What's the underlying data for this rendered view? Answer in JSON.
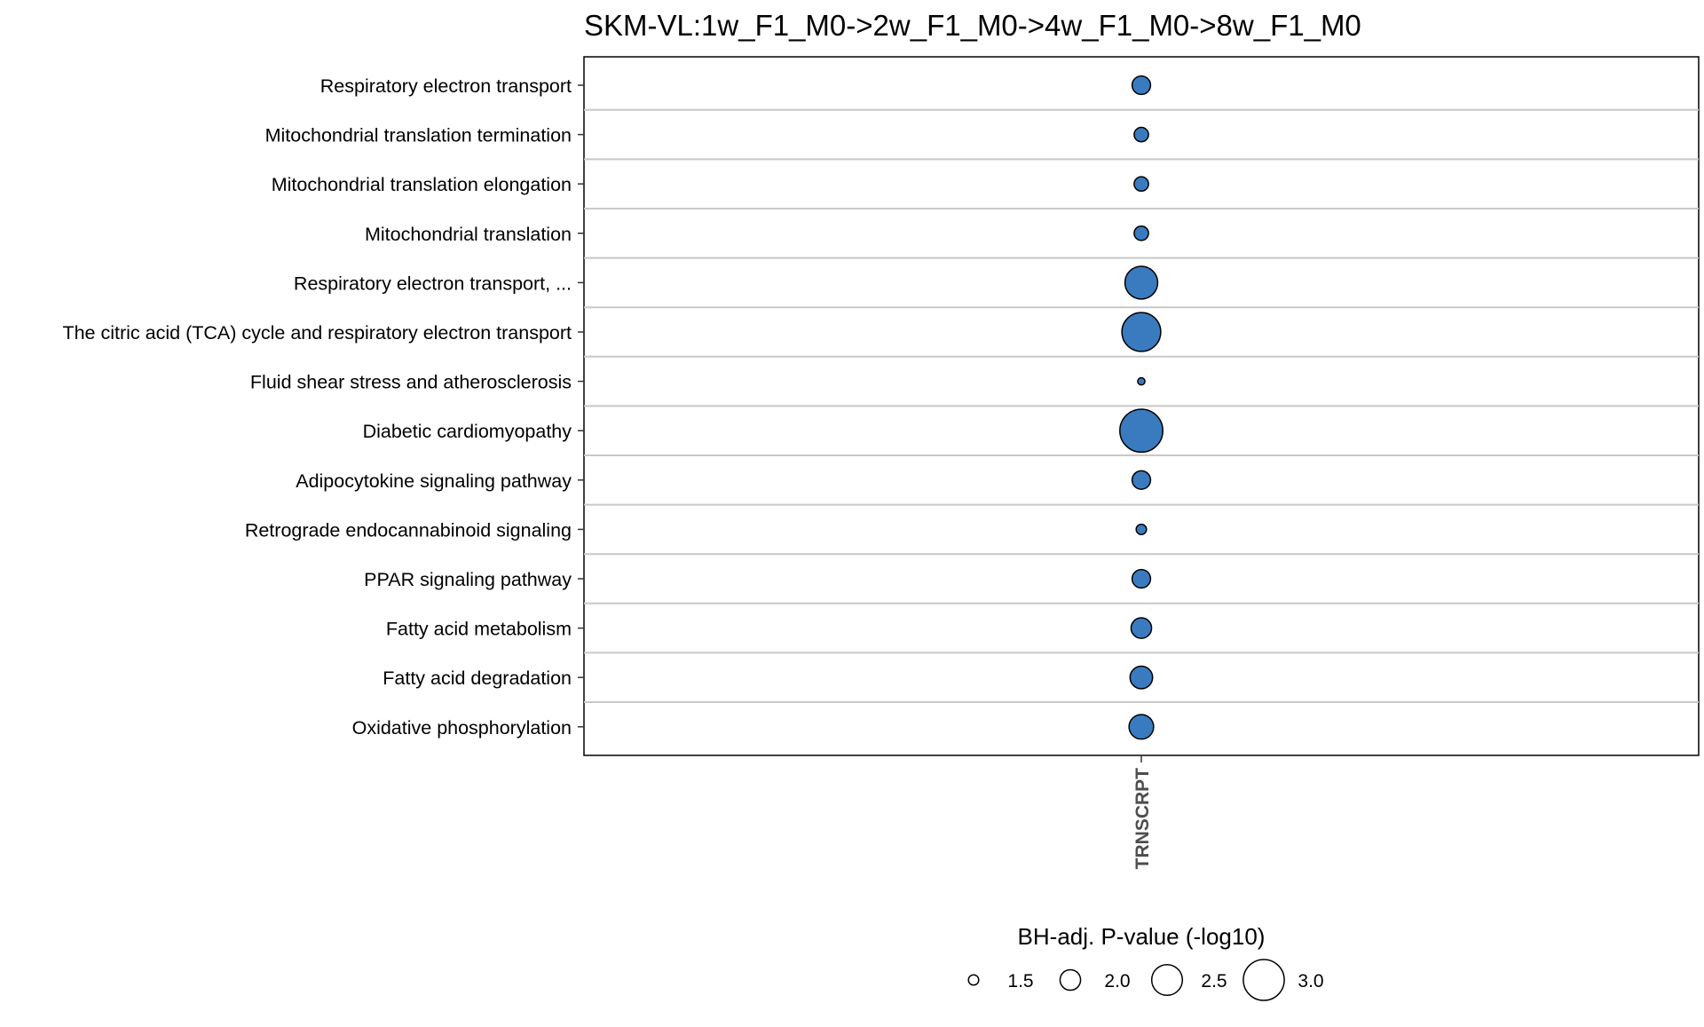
{
  "chart_data": {
    "type": "scatter",
    "title": "SKM-VL:1w_F1_M0->2w_F1_M0->4w_F1_M0->8w_F1_M0",
    "xlabel": "",
    "ylabel": "",
    "x_categories": [
      "TRNSCRPT"
    ],
    "y_categories": [
      "Respiratory electron transport",
      "Mitochondrial translation termination",
      "Mitochondrial translation elongation",
      "Mitochondrial translation",
      "Respiratory electron transport, ...",
      "The citric acid (TCA) cycle and respiratory electron transport",
      "Fluid shear stress and atherosclerosis",
      "Diabetic cardiomyopathy",
      "Adipocytokine signaling pathway",
      "Retrograde endocannabinoid signaling",
      "PPAR signaling pathway",
      "Fatty acid metabolism",
      "Fatty acid degradation",
      "Oxidative phosphorylation"
    ],
    "points": [
      {
        "x": "TRNSCRPT",
        "y": "Respiratory electron transport",
        "size": 1.9
      },
      {
        "x": "TRNSCRPT",
        "y": "Mitochondrial translation termination",
        "size": 1.7
      },
      {
        "x": "TRNSCRPT",
        "y": "Mitochondrial translation elongation",
        "size": 1.7
      },
      {
        "x": "TRNSCRPT",
        "y": "Mitochondrial translation",
        "size": 1.7
      },
      {
        "x": "TRNSCRPT",
        "y": "Respiratory electron transport, ...",
        "size": 2.6
      },
      {
        "x": "TRNSCRPT",
        "y": "The citric acid (TCA) cycle and respiratory electron transport",
        "size": 2.9
      },
      {
        "x": "TRNSCRPT",
        "y": "Fluid shear stress and atherosclerosis",
        "size": 1.35
      },
      {
        "x": "TRNSCRPT",
        "y": "Diabetic cardiomyopathy",
        "size": 3.1
      },
      {
        "x": "TRNSCRPT",
        "y": "Adipocytokine signaling pathway",
        "size": 1.9
      },
      {
        "x": "TRNSCRPT",
        "y": "Retrograde endocannabinoid signaling",
        "size": 1.5
      },
      {
        "x": "TRNSCRPT",
        "y": "PPAR signaling pathway",
        "size": 1.9
      },
      {
        "x": "TRNSCRPT",
        "y": "Fatty acid metabolism",
        "size": 2.0
      },
      {
        "x": "TRNSCRPT",
        "y": "Fatty acid degradation",
        "size": 2.1
      },
      {
        "x": "TRNSCRPT",
        "y": "Oxidative phosphorylation",
        "size": 2.2
      }
    ],
    "size_legend": {
      "title": "BH-adj. P-value (-log10)",
      "values": [
        1.5,
        2.0,
        2.5,
        3.0
      ],
      "labels": [
        "1.5",
        "2.0",
        "2.5",
        "3.0"
      ],
      "placement": "bottom"
    },
    "point_color": "#3a7bbf",
    "point_stroke": "#000000",
    "gridline_color": "#c8c8c8",
    "grid": "horizontal"
  }
}
